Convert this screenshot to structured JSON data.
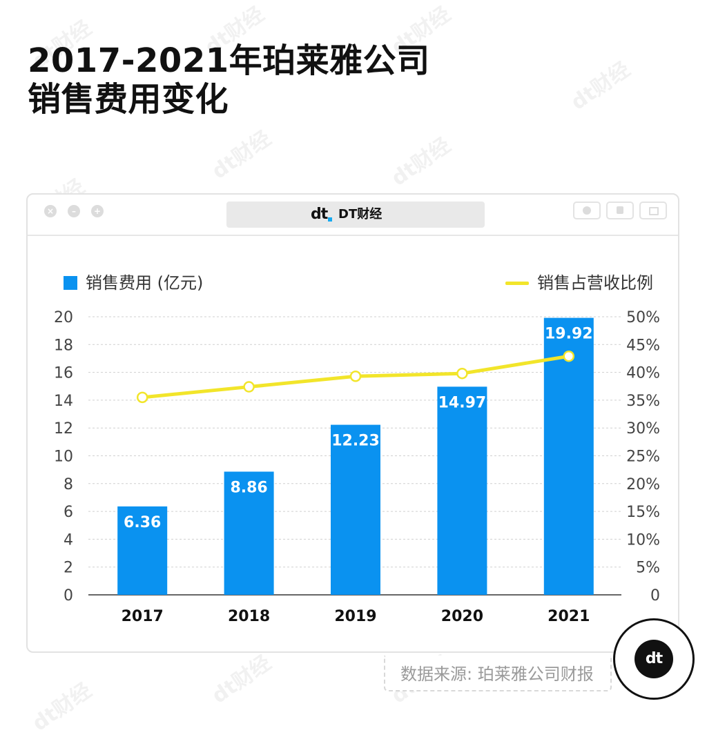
{
  "title_line1": "2017-2021年珀莱雅公司",
  "title_line2": "销售费用变化",
  "window": {
    "brand_logo": "dt",
    "brand_name": "DT财经",
    "controls": [
      "close-icon",
      "minimize-icon",
      "maximize-icon"
    ],
    "toolbar_icons": [
      "record-icon",
      "share-icon",
      "window-icon"
    ]
  },
  "watermark": "dt财经",
  "source": "数据来源: 珀莱雅公司财报",
  "badge_logo": "dt",
  "colors": {
    "bar": "#0a92f0",
    "line": "#f2e52a",
    "grid": "#cfcfcf"
  },
  "chart_data": {
    "type": "bar+line",
    "categories": [
      "2017",
      "2018",
      "2019",
      "2020",
      "2021"
    ],
    "series": [
      {
        "name": "销售费用 (亿元)",
        "type": "bar",
        "axis": "left",
        "values": [
          6.36,
          8.86,
          12.23,
          14.97,
          19.92
        ],
        "labels": [
          "6.36",
          "8.86",
          "12.23",
          "14.97",
          "19.92"
        ]
      },
      {
        "name": "销售占营收比例",
        "type": "line",
        "axis": "right",
        "values": [
          35.5,
          37.4,
          39.3,
          39.8,
          42.9
        ]
      }
    ],
    "ylim_left": [
      0,
      20
    ],
    "yticks_left": [
      "0",
      "2",
      "4",
      "6",
      "8",
      "10",
      "12",
      "14",
      "16",
      "18",
      "20"
    ],
    "ylim_right": [
      0,
      50
    ],
    "yticks_right": [
      "0",
      "5%",
      "10%",
      "15%",
      "20%",
      "25%",
      "30%",
      "35%",
      "40%",
      "45%",
      "50%"
    ],
    "grid": true,
    "legend_placement": "top"
  }
}
